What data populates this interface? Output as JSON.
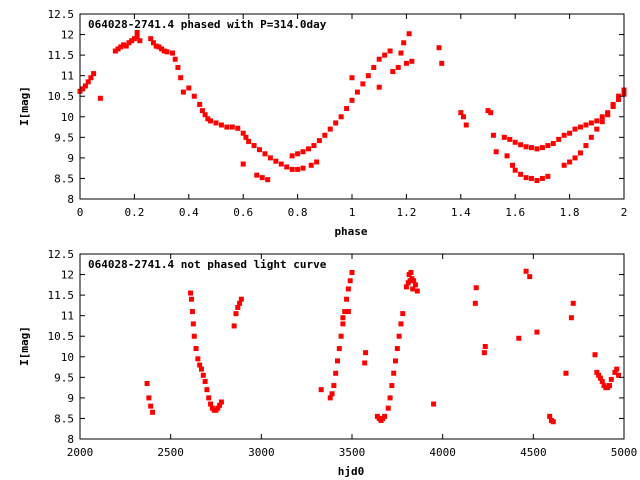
{
  "chart_data": [
    {
      "type": "scatter",
      "title": "064028-2741.4 phased with P=314.0day",
      "xlabel": "phase",
      "ylabel": "I[mag]",
      "xlim": [
        0,
        2
      ],
      "ylim": [
        12.5,
        8
      ],
      "y_inverted": true,
      "xticks": [
        0,
        0.2,
        0.4,
        0.6,
        0.8,
        1,
        1.2,
        1.4,
        1.6,
        1.8,
        2
      ],
      "xtick_labels": [
        "0",
        "0.2",
        "0.4",
        "0.6",
        "0.8",
        "1",
        "1.2",
        "1.4",
        "1.6",
        "1.8",
        "2"
      ],
      "yticks": [
        8,
        8.5,
        9,
        9.5,
        10,
        10.5,
        11,
        11.5,
        12,
        12.5
      ],
      "ytick_labels": [
        "8",
        "8.5",
        "9",
        "9.5",
        "10",
        "10.5",
        "11",
        "11.5",
        "12",
        "12.5"
      ],
      "grid": false,
      "series": [
        {
          "color": "#ff0000",
          "points": [
            [
              0.0,
              10.62
            ],
            [
              0.01,
              10.68
            ],
            [
              0.02,
              10.75
            ],
            [
              0.03,
              10.85
            ],
            [
              0.04,
              10.95
            ],
            [
              0.05,
              11.05
            ],
            [
              0.075,
              10.45
            ],
            [
              0.13,
              11.6
            ],
            [
              0.14,
              11.65
            ],
            [
              0.15,
              11.7
            ],
            [
              0.16,
              11.75
            ],
            [
              0.17,
              11.72
            ],
            [
              0.18,
              11.8
            ],
            [
              0.19,
              11.85
            ],
            [
              0.2,
              11.9
            ],
            [
              0.21,
              11.95
            ],
            [
              0.22,
              11.85
            ],
            [
              0.21,
              12.05
            ],
            [
              0.26,
              11.9
            ],
            [
              0.27,
              11.8
            ],
            [
              0.28,
              11.72
            ],
            [
              0.29,
              11.7
            ],
            [
              0.3,
              11.65
            ],
            [
              0.31,
              11.6
            ],
            [
              0.32,
              11.58
            ],
            [
              0.34,
              11.55
            ],
            [
              0.35,
              11.4
            ],
            [
              0.36,
              11.2
            ],
            [
              0.37,
              10.95
            ],
            [
              0.38,
              10.6
            ],
            [
              0.4,
              10.7
            ],
            [
              0.42,
              10.5
            ],
            [
              0.44,
              10.3
            ],
            [
              0.45,
              10.15
            ],
            [
              0.46,
              10.05
            ],
            [
              0.47,
              9.95
            ],
            [
              0.48,
              9.9
            ],
            [
              0.5,
              9.85
            ],
            [
              0.52,
              9.8
            ],
            [
              0.54,
              9.75
            ],
            [
              0.56,
              9.75
            ],
            [
              0.58,
              9.72
            ],
            [
              0.6,
              9.6
            ],
            [
              0.61,
              9.5
            ],
            [
              0.62,
              9.4
            ],
            [
              0.64,
              9.3
            ],
            [
              0.66,
              9.2
            ],
            [
              0.68,
              9.1
            ],
            [
              0.7,
              9.0
            ],
            [
              0.72,
              8.92
            ],
            [
              0.74,
              8.85
            ],
            [
              0.76,
              8.78
            ],
            [
              0.78,
              8.72
            ],
            [
              0.8,
              8.72
            ],
            [
              0.82,
              8.75
            ],
            [
              0.6,
              8.85
            ],
            [
              0.65,
              8.58
            ],
            [
              0.67,
              8.52
            ],
            [
              0.69,
              8.47
            ],
            [
              0.78,
              9.05
            ],
            [
              0.8,
              9.1
            ],
            [
              0.82,
              9.15
            ],
            [
              0.84,
              9.22
            ],
            [
              0.86,
              9.3
            ],
            [
              0.88,
              9.42
            ],
            [
              0.9,
              9.55
            ],
            [
              0.92,
              9.7
            ],
            [
              0.94,
              9.85
            ],
            [
              0.96,
              10.0
            ],
            [
              0.98,
              10.2
            ],
            [
              1.0,
              10.4
            ],
            [
              1.02,
              10.6
            ],
            [
              1.04,
              10.8
            ],
            [
              1.06,
              11.0
            ],
            [
              1.08,
              11.2
            ],
            [
              1.1,
              11.4
            ],
            [
              1.12,
              11.5
            ],
            [
              1.14,
              11.6
            ],
            [
              0.85,
              8.82
            ],
            [
              0.87,
              8.9
            ],
            [
              1.0,
              10.95
            ],
            [
              1.1,
              10.72
            ],
            [
              1.15,
              11.1
            ],
            [
              1.17,
              11.2
            ],
            [
              1.18,
              11.55
            ],
            [
              1.2,
              11.3
            ],
            [
              1.22,
              11.35
            ],
            [
              1.19,
              11.8
            ],
            [
              1.21,
              12.02
            ],
            [
              1.32,
              11.68
            ],
            [
              1.33,
              11.3
            ],
            [
              1.4,
              10.1
            ],
            [
              1.41,
              10.0
            ],
            [
              1.42,
              9.8
            ],
            [
              1.5,
              10.15
            ],
            [
              1.51,
              10.1
            ],
            [
              1.52,
              9.55
            ],
            [
              1.53,
              9.15
            ],
            [
              1.56,
              9.5
            ],
            [
              1.58,
              9.45
            ],
            [
              1.6,
              9.38
            ],
            [
              1.62,
              9.32
            ],
            [
              1.64,
              9.27
            ],
            [
              1.66,
              9.25
            ],
            [
              1.68,
              9.22
            ],
            [
              1.7,
              9.25
            ],
            [
              1.72,
              9.3
            ],
            [
              1.74,
              9.35
            ],
            [
              1.76,
              9.45
            ],
            [
              1.78,
              9.55
            ],
            [
              1.57,
              9.05
            ],
            [
              1.59,
              8.82
            ],
            [
              1.6,
              8.7
            ],
            [
              1.62,
              8.6
            ],
            [
              1.64,
              8.52
            ],
            [
              1.66,
              8.5
            ],
            [
              1.68,
              8.45
            ],
            [
              1.7,
              8.5
            ],
            [
              1.72,
              8.55
            ],
            [
              1.78,
              8.82
            ],
            [
              1.8,
              8.9
            ],
            [
              1.82,
              9.0
            ],
            [
              1.84,
              9.12
            ],
            [
              1.86,
              9.3
            ],
            [
              1.88,
              9.5
            ],
            [
              1.9,
              9.7
            ],
            [
              1.92,
              9.88
            ],
            [
              1.94,
              10.05
            ],
            [
              1.96,
              10.25
            ],
            [
              1.98,
              10.42
            ],
            [
              2.0,
              10.55
            ],
            [
              1.8,
              9.6
            ],
            [
              1.82,
              9.7
            ],
            [
              1.84,
              9.75
            ],
            [
              1.86,
              9.8
            ],
            [
              1.88,
              9.85
            ],
            [
              1.9,
              9.9
            ],
            [
              1.92,
              10.0
            ],
            [
              1.94,
              10.1
            ],
            [
              1.96,
              10.3
            ],
            [
              1.98,
              10.5
            ],
            [
              2.0,
              10.65
            ]
          ]
        }
      ]
    },
    {
      "type": "scatter",
      "title": "064028-2741.4 not phased light curve",
      "xlabel": "hjd0",
      "ylabel": "I[mag]",
      "xlim": [
        2000,
        5000
      ],
      "ylim": [
        12.5,
        8
      ],
      "y_inverted": true,
      "xticks": [
        2000,
        2500,
        3000,
        3500,
        4000,
        4500,
        5000
      ],
      "xtick_labels": [
        "2000",
        "2500",
        "3000",
        "3500",
        "4000",
        "4500",
        "5000"
      ],
      "yticks": [
        8,
        8.5,
        9,
        9.5,
        10,
        10.5,
        11,
        11.5,
        12,
        12.5
      ],
      "ytick_labels": [
        "8",
        "8.5",
        "9",
        "9.5",
        "10",
        "10.5",
        "11",
        "11.5",
        "12",
        "12.5"
      ],
      "grid": false,
      "series": [
        {
          "color": "#ff0000",
          "points": [
            [
              2370,
              9.35
            ],
            [
              2380,
              9.0
            ],
            [
              2390,
              8.8
            ],
            [
              2400,
              8.65
            ],
            [
              2610,
              11.55
            ],
            [
              2615,
              11.4
            ],
            [
              2620,
              11.1
            ],
            [
              2625,
              10.8
            ],
            [
              2630,
              10.5
            ],
            [
              2640,
              10.2
            ],
            [
              2650,
              9.95
            ],
            [
              2660,
              9.8
            ],
            [
              2670,
              9.7
            ],
            [
              2680,
              9.55
            ],
            [
              2690,
              9.4
            ],
            [
              2700,
              9.2
            ],
            [
              2710,
              9.0
            ],
            [
              2720,
              8.85
            ],
            [
              2730,
              8.75
            ],
            [
              2740,
              8.7
            ],
            [
              2750,
              8.7
            ],
            [
              2760,
              8.75
            ],
            [
              2770,
              8.82
            ],
            [
              2780,
              8.9
            ],
            [
              2850,
              10.75
            ],
            [
              2860,
              11.05
            ],
            [
              2870,
              11.2
            ],
            [
              2880,
              11.3
            ],
            [
              2890,
              11.4
            ],
            [
              3330,
              9.2
            ],
            [
              3380,
              9.0
            ],
            [
              3390,
              9.1
            ],
            [
              3400,
              9.3
            ],
            [
              3410,
              9.6
            ],
            [
              3420,
              9.9
            ],
            [
              3430,
              10.2
            ],
            [
              3440,
              10.5
            ],
            [
              3450,
              10.8
            ],
            [
              3460,
              11.1
            ],
            [
              3470,
              11.4
            ],
            [
              3480,
              11.65
            ],
            [
              3490,
              11.85
            ],
            [
              3500,
              12.05
            ],
            [
              3450,
              10.95
            ],
            [
              3480,
              11.1
            ],
            [
              3570,
              9.85
            ],
            [
              3575,
              10.1
            ],
            [
              3640,
              8.55
            ],
            [
              3650,
              8.5
            ],
            [
              3660,
              8.45
            ],
            [
              3670,
              8.5
            ],
            [
              3680,
              8.55
            ],
            [
              3700,
              8.75
            ],
            [
              3710,
              9.0
            ],
            [
              3720,
              9.3
            ],
            [
              3730,
              9.6
            ],
            [
              3740,
              9.9
            ],
            [
              3750,
              10.2
            ],
            [
              3760,
              10.5
            ],
            [
              3770,
              10.8
            ],
            [
              3780,
              11.05
            ],
            [
              3800,
              11.7
            ],
            [
              3810,
              11.8
            ],
            [
              3820,
              11.85
            ],
            [
              3830,
              11.9
            ],
            [
              3840,
              11.85
            ],
            [
              3850,
              11.75
            ],
            [
              3860,
              11.6
            ],
            [
              3815,
              12.0
            ],
            [
              3825,
              12.05
            ],
            [
              3835,
              11.65
            ],
            [
              3950,
              8.85
            ],
            [
              4180,
              11.3
            ],
            [
              4185,
              11.68
            ],
            [
              4230,
              10.1
            ],
            [
              4235,
              10.25
            ],
            [
              4420,
              10.45
            ],
            [
              4460,
              12.08
            ],
            [
              4480,
              11.95
            ],
            [
              4520,
              10.6
            ],
            [
              4590,
              8.55
            ],
            [
              4600,
              8.45
            ],
            [
              4610,
              8.42
            ],
            [
              4680,
              9.6
            ],
            [
              4710,
              10.95
            ],
            [
              4720,
              11.3
            ],
            [
              4840,
              10.05
            ],
            [
              4850,
              9.62
            ],
            [
              4860,
              9.55
            ],
            [
              4870,
              9.48
            ],
            [
              4880,
              9.4
            ],
            [
              4890,
              9.3
            ],
            [
              4900,
              9.25
            ],
            [
              4910,
              9.25
            ],
            [
              4920,
              9.3
            ],
            [
              4930,
              9.45
            ],
            [
              4950,
              9.62
            ],
            [
              4960,
              9.7
            ],
            [
              4970,
              9.55
            ]
          ]
        }
      ]
    }
  ]
}
